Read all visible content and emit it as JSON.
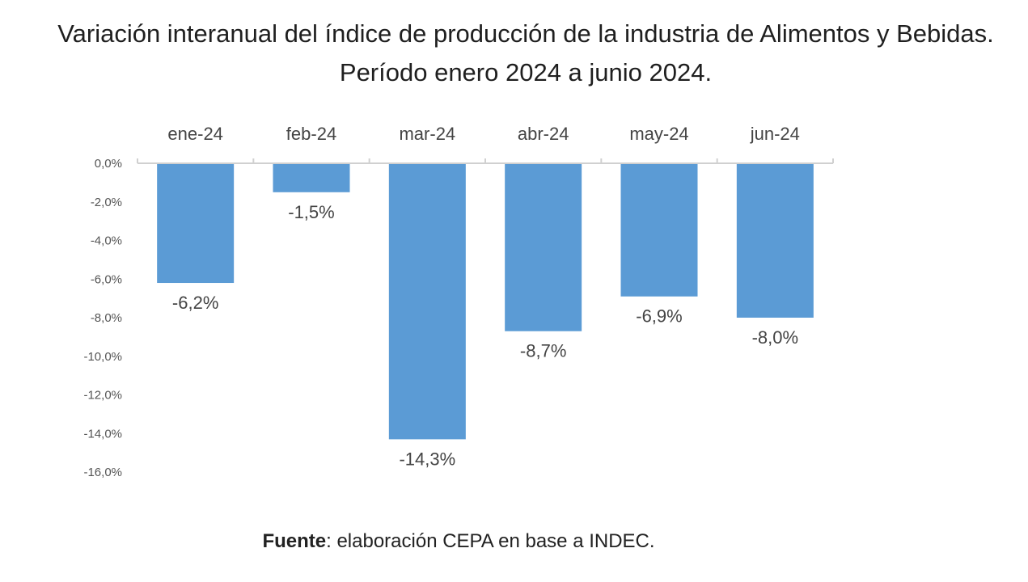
{
  "chart_data": {
    "type": "bar",
    "title": "Variación interanual del índice de producción de la industria de Alimentos y Bebidas. Período enero 2024 a junio 2024.",
    "categories": [
      "ene-24",
      "feb-24",
      "mar-24",
      "abr-24",
      "may-24",
      "jun-24"
    ],
    "values": [
      -6.2,
      -1.5,
      -14.3,
      -8.7,
      -6.9,
      -8.0
    ],
    "data_labels": [
      "-6,2%",
      "-1,5%",
      "-14,3%",
      "-8,7%",
      "-6,9%",
      "-8,0%"
    ],
    "ylim": [
      -16,
      0
    ],
    "yticks": [
      0,
      -2,
      -4,
      -6,
      -8,
      -10,
      -12,
      -14,
      -16
    ],
    "ytick_labels": [
      "0,0%",
      "-2,0%",
      "-4,0%",
      "-6,0%",
      "-8,0%",
      "-10,0%",
      "-12,0%",
      "-14,0%",
      "-16,0%"
    ],
    "xaxis_position": "top",
    "xlabel": "",
    "ylabel": "",
    "grid": false,
    "bar_color": "#5B9BD5"
  },
  "source": {
    "label": "Fuente",
    "text": ": elaboración CEPA en base a INDEC."
  }
}
